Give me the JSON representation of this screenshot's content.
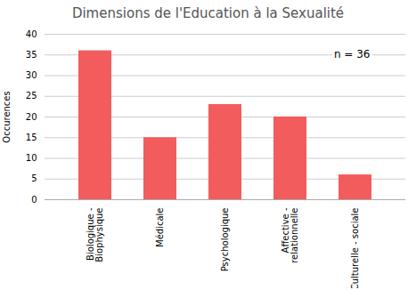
{
  "chart_data": {
    "type": "bar",
    "title": "Dimensions de l'Education à la Sexualité",
    "categories": [
      "Biologique -\nBiophysique",
      "Médicale",
      "Psychologique",
      "Affective -\nrelationnelle",
      "Culturelle - sociale"
    ],
    "values": [
      36,
      15,
      23,
      20,
      6
    ],
    "color": "#f25c5c",
    "ylabel": "Occurences",
    "ylim": [
      0,
      40
    ],
    "yticks": [
      0,
      5,
      10,
      15,
      20,
      25,
      30,
      35,
      40
    ],
    "annotation": "n = 36",
    "grid": true
  }
}
